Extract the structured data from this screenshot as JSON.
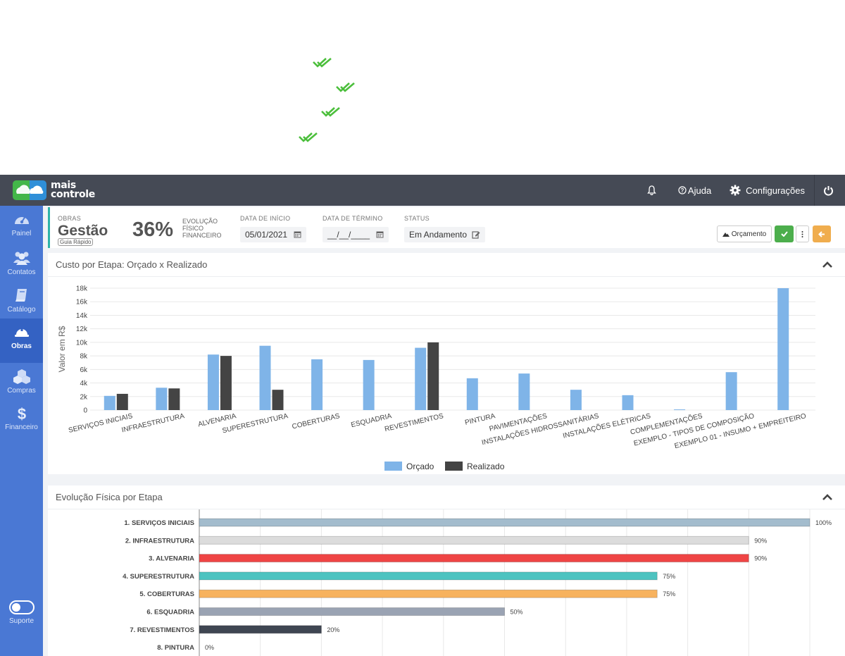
{
  "app": {
    "logo_line1": "mais",
    "logo_line2": "controle",
    "nav": {
      "help": "Ajuda",
      "settings": "Configurações"
    }
  },
  "sidebar": {
    "items": [
      {
        "label": "Painel",
        "icon": "dashboard-icon"
      },
      {
        "label": "Contatos",
        "icon": "users-icon"
      },
      {
        "label": "Catálogo",
        "icon": "book-icon"
      },
      {
        "label": "Obras",
        "icon": "hardhat-icon",
        "active": true
      },
      {
        "label": "Compras",
        "icon": "cubes-icon"
      },
      {
        "label": "Financeiro",
        "icon": "dollar-icon"
      }
    ],
    "support": "Suporte"
  },
  "header": {
    "section_label": "OBRAS",
    "title": "Gestão",
    "guide": "Guia Rápido",
    "progress_value": "36%",
    "progress_label_1": "EVOLUÇÃO",
    "progress_label_2": "FÍSICO",
    "progress_label_3": "FINANCEIRO",
    "start_label": "DATA DE INÍCIO",
    "start_value": "05/01/2021",
    "end_label": "DATA DE TÉRMINO",
    "end_value": "__/__/____",
    "status_label": "STATUS",
    "status_value": "Em Andamento",
    "budget_button": "Orçamento"
  },
  "colors": {
    "topbar": "#454a55",
    "sidebar": "#4a78d4",
    "accent_teal": "#2fb3a9",
    "orcado": "#7fb4e8",
    "realizado": "#444444",
    "success": "#4cae4c",
    "warning": "#f0ad4e"
  },
  "cost_card": {
    "title": "Custo por Etapa: Orçado x Realizado"
  },
  "evolution_card": {
    "title": "Evolução Física por Etapa"
  },
  "chart_data": [
    {
      "type": "bar",
      "title": "Custo por Etapa: Orçado x Realizado",
      "ylabel": "Valor em R$",
      "ylim": [
        0,
        18000
      ],
      "yticks": [
        "0",
        "2k",
        "4k",
        "6k",
        "8k",
        "10k",
        "12k",
        "14k",
        "16k",
        "18k"
      ],
      "legend_position": "bottom",
      "categories": [
        "SERVIÇOS INICIAIS",
        "INFRAESTRUTURA",
        "ALVENARIA",
        "SUPERESTRUTURA",
        "COBERTURAS",
        "ESQUADRIA",
        "REVESTIMENTOS",
        "PINTURA",
        "PAVIMENTAÇÕES",
        "INSTALAÇÕES HIDROSSANITÁRIAS",
        "INSTALAÇÕES ELÉTRICAS",
        "COMPLEMENTAÇÕES",
        "EXEMPLO - TIPOS DE COMPOSIÇÃO",
        "EXEMPLO 01 - INSUMO + EMPREITEIRO"
      ],
      "series": [
        {
          "name": "Orçado",
          "values": [
            2100,
            3300,
            8200,
            9500,
            7500,
            7400,
            9200,
            4700,
            5400,
            3000,
            2200,
            100,
            5600,
            18000
          ]
        },
        {
          "name": "Realizado",
          "values": [
            2400,
            3200,
            8000,
            3000,
            0,
            0,
            10000,
            0,
            0,
            0,
            0,
            0,
            0,
            0
          ]
        }
      ]
    },
    {
      "type": "bar",
      "orientation": "horizontal",
      "title": "Evolução Física por Etapa",
      "xlim": [
        0,
        100
      ],
      "categories": [
        "1. SERVIÇOS INICIAIS",
        "2. INFRAESTRUTURA",
        "3. ALVENARIA",
        "4. SUPERESTRUTURA",
        "5. COBERTURAS",
        "6. ESQUADRIA",
        "7. REVESTIMENTOS",
        "8. PINTURA"
      ],
      "values": [
        100,
        90,
        90,
        75,
        75,
        50,
        20,
        0
      ],
      "labels": [
        "100%",
        "90%",
        "90%",
        "75%",
        "75%",
        "50%",
        "20%",
        "0%"
      ],
      "colors": [
        "#a3bccd",
        "#dcdcdc",
        "#ef4444",
        "#4dc3c0",
        "#f7b25e",
        "#9aa3b3",
        "#3f4652",
        "#cccccc"
      ]
    }
  ]
}
